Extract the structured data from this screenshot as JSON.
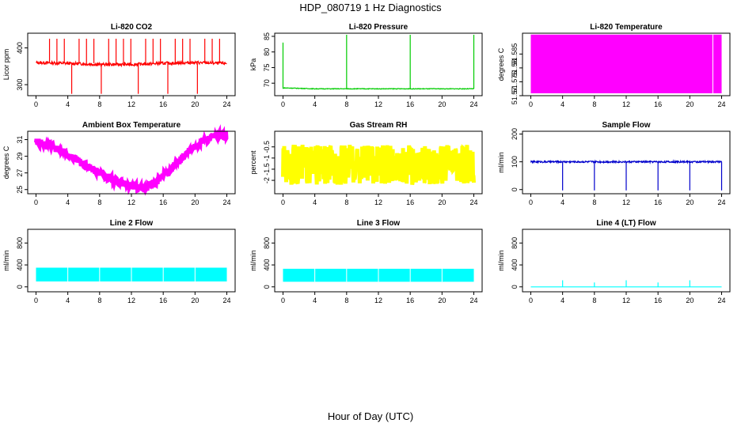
{
  "figure": {
    "title": "HDP_080719  1 Hz Diagnostics",
    "xlabel": "Hour of Day (UTC)"
  },
  "chart_data": [
    {
      "type": "line",
      "title": "Li-820 CO2",
      "ylabel": "Licor ppm",
      "color": "#ff0000",
      "xlim": [
        0,
        24
      ],
      "ylim": [
        270,
        440
      ],
      "yticks": [
        300,
        400
      ],
      "x": [
        0,
        4,
        8,
        12,
        16,
        20,
        24
      ],
      "series": [
        {
          "values": [
            360,
            358,
            355,
            355,
            358,
            360,
            358
          ]
        }
      ]
    },
    {
      "type": "line",
      "title": "Li-820 Pressure",
      "ylabel": "kPa",
      "color": "#00cc00",
      "xlim": [
        0,
        24
      ],
      "ylim": [
        66,
        86
      ],
      "yticks": [
        70,
        75,
        80,
        85
      ],
      "x": [
        0,
        4,
        8,
        12,
        16,
        20,
        24
      ],
      "series": [
        {
          "values": [
            68.5,
            68.2,
            68.2,
            68.2,
            68.2,
            68.2,
            68.2
          ]
        }
      ]
    },
    {
      "type": "area",
      "title": "Li-820 Temperature",
      "ylabel": "degrees C",
      "color": "#ff00ff",
      "xlim": [
        0,
        24
      ],
      "ylim": [
        51.57,
        51.5925
      ],
      "yticks": [
        51.57,
        51.575,
        51.58,
        51.585
      ],
      "x": [
        0,
        24
      ],
      "series": [
        {
          "values": [
            51.592,
            51.592
          ]
        }
      ]
    },
    {
      "type": "line",
      "title": "Ambient Box Temperature",
      "ylabel": "degrees C",
      "color": "#ff00ff",
      "xlim": [
        0,
        24
      ],
      "ylim": [
        24.5,
        32
      ],
      "yticks": [
        25,
        27,
        29,
        31
      ],
      "x": [
        0,
        2,
        4,
        6,
        8,
        10,
        12,
        13.5,
        15,
        17,
        19,
        21,
        23,
        24
      ],
      "series": [
        {
          "values": [
            30.8,
            30.2,
            29.2,
            28.0,
            27.0,
            26.0,
            25.4,
            25.1,
            25.8,
            27.5,
            29.4,
            30.9,
            31.5,
            31.6
          ]
        }
      ]
    },
    {
      "type": "line",
      "title": "Gas Stream RH",
      "ylabel": "percent",
      "color": "#ffff00",
      "xlim": [
        0,
        24
      ],
      "ylim": [
        -2.6,
        0.2
      ],
      "yticks": [
        -2.0,
        -1.5,
        -1.0,
        -0.5
      ],
      "x": [
        0,
        4,
        8,
        12,
        16,
        20,
        24
      ],
      "series": [
        {
          "values": [
            -1.3,
            -1.3,
            -1.3,
            -1.3,
            -1.3,
            -1.3,
            -1.3
          ]
        }
      ]
    },
    {
      "type": "line",
      "title": "Sample Flow",
      "ylabel": "ml/min",
      "color": "#0000cc",
      "xlim": [
        0,
        24
      ],
      "ylim": [
        -15,
        210
      ],
      "yticks": [
        0,
        100,
        200
      ],
      "x": [
        0,
        4,
        8,
        12,
        16,
        20,
        24
      ],
      "series": [
        {
          "values": [
            100,
            100,
            100,
            100,
            100,
            100,
            100
          ]
        }
      ]
    },
    {
      "type": "area",
      "title": "Line 2 Flow",
      "ylabel": "ml/min",
      "color": "#00ffff",
      "xlim": [
        0,
        24
      ],
      "ylim": [
        -90,
        1050
      ],
      "yticks": [
        0,
        400,
        800
      ],
      "x": [
        0,
        24
      ],
      "series": [
        {
          "values": [
            330,
            330
          ]
        }
      ]
    },
    {
      "type": "area",
      "title": "Line 3 Flow",
      "ylabel": "ml/min",
      "color": "#00ffff",
      "xlim": [
        0,
        24
      ],
      "ylim": [
        -90,
        1050
      ],
      "yticks": [
        0,
        400,
        800
      ],
      "x": [
        0,
        24
      ],
      "series": [
        {
          "values": [
            310,
            310
          ]
        }
      ]
    },
    {
      "type": "line",
      "title": "Line 4 (LT) Flow",
      "ylabel": "ml/min",
      "color": "#00ffff",
      "xlim": [
        0,
        24
      ],
      "ylim": [
        -90,
        1050
      ],
      "yticks": [
        0,
        400,
        800
      ],
      "x": [
        0,
        4,
        8,
        12,
        16,
        20,
        24
      ],
      "series": [
        {
          "values": [
            0,
            0,
            0,
            0,
            0,
            0,
            0
          ]
        }
      ]
    }
  ],
  "xticks": [
    0,
    4,
    8,
    12,
    16,
    20,
    24
  ]
}
